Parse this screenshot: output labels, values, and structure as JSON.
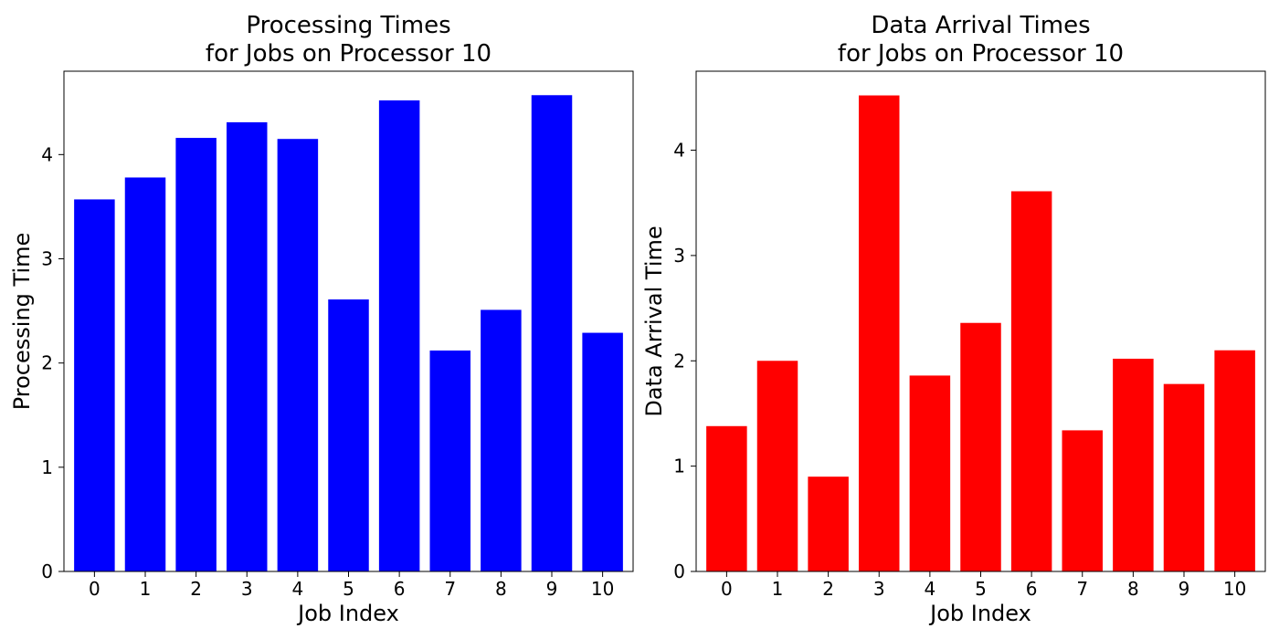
{
  "chart_data": [
    {
      "type": "bar",
      "title": "Processing Times\nfor Jobs on Processor 10",
      "xlabel": "Job Index",
      "ylabel": "Processing Time",
      "categories": [
        "0",
        "1",
        "2",
        "3",
        "4",
        "5",
        "6",
        "7",
        "8",
        "9",
        "10"
      ],
      "values": [
        3.57,
        3.78,
        4.16,
        4.31,
        4.15,
        2.61,
        4.52,
        2.12,
        2.51,
        4.57,
        2.29
      ],
      "ylim": [
        0,
        4.8
      ],
      "yticks": [
        0,
        1,
        2,
        3,
        4
      ],
      "color": "#0000ff",
      "grid": false
    },
    {
      "type": "bar",
      "title": "Data Arrival Times\nfor Jobs on Processor 10",
      "xlabel": "Job Index",
      "ylabel": "Data Arrival Time",
      "categories": [
        "0",
        "1",
        "2",
        "3",
        "4",
        "5",
        "6",
        "7",
        "8",
        "9",
        "10"
      ],
      "values": [
        1.38,
        2.0,
        0.9,
        4.52,
        1.86,
        2.36,
        3.61,
        1.34,
        2.02,
        1.78,
        2.1
      ],
      "ylim": [
        0,
        4.75
      ],
      "yticks": [
        0,
        1,
        2,
        3,
        4
      ],
      "color": "#ff0000",
      "grid": false
    }
  ]
}
